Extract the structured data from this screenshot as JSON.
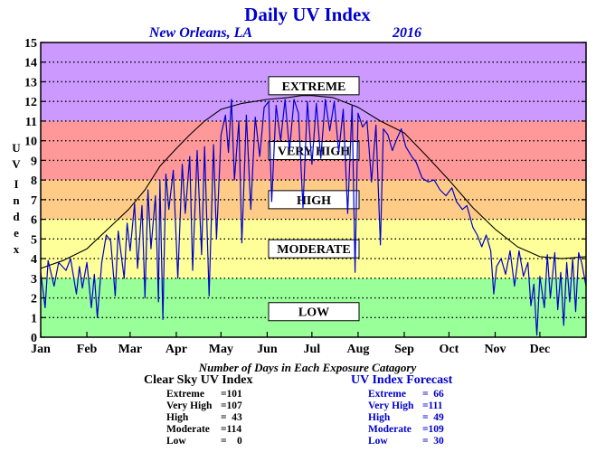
{
  "chart_data": {
    "type": "line",
    "title": "Daily UV Index",
    "subtitle_location": "New Orleans, LA",
    "subtitle_year": "2016",
    "ylabel": "U V  I n d e x",
    "ylim": [
      0,
      15
    ],
    "yticks": [
      "0",
      "1",
      "2",
      "3",
      "4",
      "5",
      "6",
      "7",
      "8",
      "9",
      "10",
      "11",
      "12",
      "13",
      "14",
      "15"
    ],
    "xlim": [
      0,
      366
    ],
    "months": [
      "Jan",
      "Feb",
      "Mar",
      "Apr",
      "May",
      "Jun",
      "Jul",
      "Aug",
      "Sep",
      "Oct",
      "Nov",
      "Dec"
    ],
    "month_days": [
      31,
      29,
      31,
      30,
      31,
      30,
      31,
      31,
      30,
      31,
      30,
      31
    ],
    "grid": true,
    "bands": [
      {
        "label": "LOW",
        "from": 0,
        "to": 3,
        "color": "#99ff99"
      },
      {
        "label": "MODERATE",
        "from": 3,
        "to": 6,
        "color": "#ffff99"
      },
      {
        "label": "HIGH",
        "from": 6,
        "to": 8,
        "color": "#ffcc88"
      },
      {
        "label": "VERY HIGH",
        "from": 8,
        "to": 11,
        "color": "#ff9999"
      },
      {
        "label": "EXTREME",
        "from": 11,
        "to": 15,
        "color": "#cc99ff"
      }
    ],
    "band_label_values": [
      1.3,
      4.5,
      7.0,
      9.5,
      12.8
    ],
    "series": [
      {
        "name": "Clear Sky UV Index",
        "color": "#000000",
        "points": [
          [
            0,
            3.5
          ],
          [
            15,
            3.9
          ],
          [
            31,
            4.5
          ],
          [
            45,
            5.5
          ],
          [
            59,
            6.5
          ],
          [
            70,
            7.5
          ],
          [
            80,
            8.7
          ],
          [
            91,
            9.6
          ],
          [
            100,
            10.3
          ],
          [
            110,
            11.0
          ],
          [
            121,
            11.6
          ],
          [
            135,
            11.9
          ],
          [
            152,
            12.1
          ],
          [
            166,
            12.2
          ],
          [
            175,
            12.3
          ],
          [
            182,
            12.3
          ],
          [
            196,
            12.2
          ],
          [
            213,
            11.7
          ],
          [
            228,
            11.0
          ],
          [
            244,
            10.4
          ],
          [
            258,
            9.3
          ],
          [
            274,
            8.0
          ],
          [
            290,
            6.6
          ],
          [
            305,
            5.5
          ],
          [
            320,
            4.6
          ],
          [
            335,
            4.1
          ],
          [
            350,
            4.0
          ],
          [
            366,
            4.1
          ]
        ]
      },
      {
        "name": "UV Index Forecast",
        "color": "#0000cc",
        "points": [
          [
            0,
            3.3
          ],
          [
            3,
            1.5
          ],
          [
            5,
            3.9
          ],
          [
            9,
            2.6
          ],
          [
            12,
            3.8
          ],
          [
            17,
            3.4
          ],
          [
            20,
            4.0
          ],
          [
            24,
            2.2
          ],
          [
            26,
            3.6
          ],
          [
            28,
            2.5
          ],
          [
            31,
            3.8
          ],
          [
            34,
            1.5
          ],
          [
            36,
            3.2
          ],
          [
            38,
            1.0
          ],
          [
            41,
            3.8
          ],
          [
            44,
            5.2
          ],
          [
            47,
            4.9
          ],
          [
            50,
            2.1
          ],
          [
            52,
            5.4
          ],
          [
            56,
            3.0
          ],
          [
            58,
            5.8
          ],
          [
            60,
            4.4
          ],
          [
            63,
            6.8
          ],
          [
            65,
            3.5
          ],
          [
            68,
            6.7
          ],
          [
            70,
            2.0
          ],
          [
            72,
            7.5
          ],
          [
            74,
            4.5
          ],
          [
            77,
            7.2
          ],
          [
            79,
            1.8
          ],
          [
            80,
            8.0
          ],
          [
            82,
            0.9
          ],
          [
            84,
            8.3
          ],
          [
            86,
            6.5
          ],
          [
            89,
            8.5
          ],
          [
            92,
            3.0
          ],
          [
            95,
            8.8
          ],
          [
            97,
            6.3
          ],
          [
            100,
            9.2
          ],
          [
            102,
            3.4
          ],
          [
            105,
            9.5
          ],
          [
            108,
            4.2
          ],
          [
            110,
            9.7
          ],
          [
            113,
            2.1
          ],
          [
            116,
            9.8
          ],
          [
            118,
            5.0
          ],
          [
            121,
            10.3
          ],
          [
            124,
            11.3
          ],
          [
            126,
            9.4
          ],
          [
            128,
            12.1
          ],
          [
            130,
            8.0
          ],
          [
            133,
            11.0
          ],
          [
            135,
            4.8
          ],
          [
            138,
            11.3
          ],
          [
            141,
            6.5
          ],
          [
            144,
            11.2
          ],
          [
            147,
            9.2
          ],
          [
            150,
            11.7
          ],
          [
            153,
            12.0
          ],
          [
            155,
            6.9
          ],
          [
            158,
            11.8
          ],
          [
            161,
            10.0
          ],
          [
            164,
            12.1
          ],
          [
            167,
            9.5
          ],
          [
            170,
            12.1
          ],
          [
            173,
            11.4
          ],
          [
            176,
            6.6
          ],
          [
            179,
            12.0
          ],
          [
            182,
            8.8
          ],
          [
            185,
            11.9
          ],
          [
            188,
            9.1
          ],
          [
            191,
            12.1
          ],
          [
            194,
            10.5
          ],
          [
            197,
            12.0
          ],
          [
            200,
            9.4
          ],
          [
            203,
            11.6
          ],
          [
            206,
            6.3
          ],
          [
            209,
            11.8
          ],
          [
            211,
            3.3
          ],
          [
            213,
            11.4
          ],
          [
            216,
            10.7
          ],
          [
            219,
            11.0
          ],
          [
            222,
            7.9
          ],
          [
            225,
            10.8
          ],
          [
            228,
            4.7
          ],
          [
            230,
            10.6
          ],
          [
            233,
            10.3
          ],
          [
            236,
            9.5
          ],
          [
            239,
            10.1
          ],
          [
            242,
            10.6
          ],
          [
            245,
            9.7
          ],
          [
            249,
            9.2
          ],
          [
            252,
            8.9
          ],
          [
            256,
            8.1
          ],
          [
            260,
            7.9
          ],
          [
            264,
            8.0
          ],
          [
            268,
            7.5
          ],
          [
            272,
            7.2
          ],
          [
            276,
            7.6
          ],
          [
            279,
            6.9
          ],
          [
            283,
            6.5
          ],
          [
            286,
            6.7
          ],
          [
            290,
            5.6
          ],
          [
            293,
            5.2
          ],
          [
            296,
            4.6
          ],
          [
            299,
            5.2
          ],
          [
            302,
            4.4
          ],
          [
            304,
            2.2
          ],
          [
            306,
            3.6
          ],
          [
            309,
            4.0
          ],
          [
            312,
            3.2
          ],
          [
            315,
            4.4
          ],
          [
            318,
            2.6
          ],
          [
            321,
            4.4
          ],
          [
            324,
            3.1
          ],
          [
            327,
            3.8
          ],
          [
            329,
            1.6
          ],
          [
            331,
            2.7
          ],
          [
            333,
            0.1
          ],
          [
            335,
            3.1
          ],
          [
            338,
            1.5
          ],
          [
            340,
            4.2
          ],
          [
            342,
            2.0
          ],
          [
            345,
            4.3
          ],
          [
            347,
            1.4
          ],
          [
            349,
            3.3
          ],
          [
            351,
            0.6
          ],
          [
            353,
            3.8
          ],
          [
            355,
            1.8
          ],
          [
            357,
            4.0
          ],
          [
            359,
            1.3
          ],
          [
            361,
            4.3
          ],
          [
            363,
            3.8
          ],
          [
            366,
            2.6
          ]
        ]
      }
    ]
  },
  "summary": {
    "title": "Number of Days in Each Exposure Catagory",
    "clear": {
      "heading": "Clear Sky UV Index",
      "rows": [
        {
          "label": "Extreme",
          "value": "=101"
        },
        {
          "label": "Very High",
          "value": "=107"
        },
        {
          "label": "High",
          "value": "=  43"
        },
        {
          "label": "Moderate",
          "value": "=114"
        },
        {
          "label": "Low",
          "value": "=    0"
        }
      ]
    },
    "forecast": {
      "heading": "UV Index Forecast",
      "rows": [
        {
          "label": "Extreme",
          "value": "=  66"
        },
        {
          "label": "Very High",
          "value": "=111"
        },
        {
          "label": "High",
          "value": "=  49"
        },
        {
          "label": "Moderate",
          "value": "=109"
        },
        {
          "label": "Low",
          "value": "=  30"
        }
      ]
    }
  }
}
